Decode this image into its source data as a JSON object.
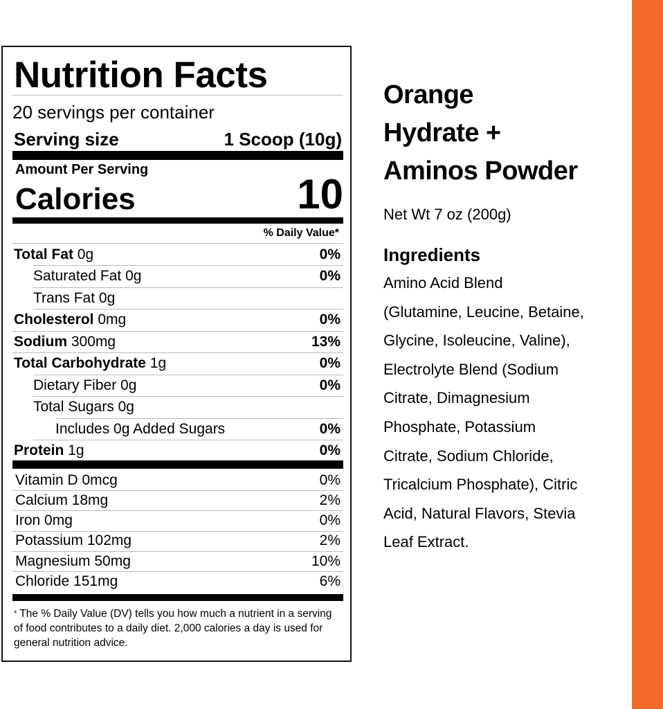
{
  "colors": {
    "accent": "#F26B2A"
  },
  "label": {
    "title": "Nutrition Facts",
    "servings_per_container": "20 servings per container",
    "serving_size_label": "Serving size",
    "serving_size_value": "1 Scoop (10g)",
    "amount_per_serving": "Amount Per Serving",
    "calories_label": "Calories",
    "calories_value": "10",
    "daily_value_header": "% Daily Value*",
    "nutrients": [
      {
        "name": "Total Fat",
        "amount": " 0g",
        "dv": "0%",
        "bold": true,
        "indent": 0
      },
      {
        "name": "Saturated Fat 0g",
        "amount": "",
        "dv": "0%",
        "bold": false,
        "indent": 1
      },
      {
        "name": "Trans Fat 0g",
        "amount": "",
        "dv": "",
        "bold": false,
        "indent": 1
      },
      {
        "name": "Cholesterol",
        "amount": " 0mg",
        "dv": "0%",
        "bold": true,
        "indent": 0
      },
      {
        "name": "Sodium",
        "amount": " 300mg",
        "dv": "13%",
        "bold": true,
        "indent": 0
      },
      {
        "name": "Total Carbohydrate",
        "amount": " 1g",
        "dv": "0%",
        "bold": true,
        "indent": 0
      },
      {
        "name": "Dietary Fiber 0g",
        "amount": "",
        "dv": "0%",
        "bold": false,
        "indent": 1
      },
      {
        "name": "Total Sugars 0g",
        "amount": "",
        "dv": "",
        "bold": false,
        "indent": 1
      },
      {
        "name": "Includes 0g Added Sugars",
        "amount": "",
        "dv": "0%",
        "bold": false,
        "indent": 2
      },
      {
        "name": "Protein",
        "amount": " 1g",
        "dv": "0%",
        "bold": true,
        "indent": 0
      }
    ],
    "vitamins": [
      {
        "name": "Vitamin D 0mcg",
        "dv": "0%"
      },
      {
        "name": "Calcium 18mg",
        "dv": "2%"
      },
      {
        "name": "Iron 0mg",
        "dv": "0%"
      },
      {
        "name": "Potassium 102mg",
        "dv": "2%"
      },
      {
        "name": "Magnesium 50mg",
        "dv": "10%"
      },
      {
        "name": "Chloride 151mg",
        "dv": "6%"
      }
    ],
    "footnote_star": "*",
    "footnote": "The % Daily Value (DV) tells you how much a nutrient in a serving of food contributes to a daily diet. 2,000 calories a day is used for general nutrition advice."
  },
  "product": {
    "title_lines": [
      "Orange",
      "Hydrate +",
      "Aminos Powder"
    ],
    "net_weight": "Net Wt 7 oz (200g)",
    "ingredients_heading": "Ingredients",
    "ingredients_lines": [
      "Amino Acid Blend",
      "(Glutamine, Leucine, Betaine,",
      "Glycine, Isoleucine, Valine),",
      "Electrolyte Blend (Sodium",
      "Citrate, Dimagnesium",
      "Phosphate, Potassium",
      "Citrate, Sodium Chloride,",
      "Tricalcium Phosphate), Citric",
      "Acid, Natural Flavors, Stevia",
      "Leaf Extract."
    ]
  }
}
